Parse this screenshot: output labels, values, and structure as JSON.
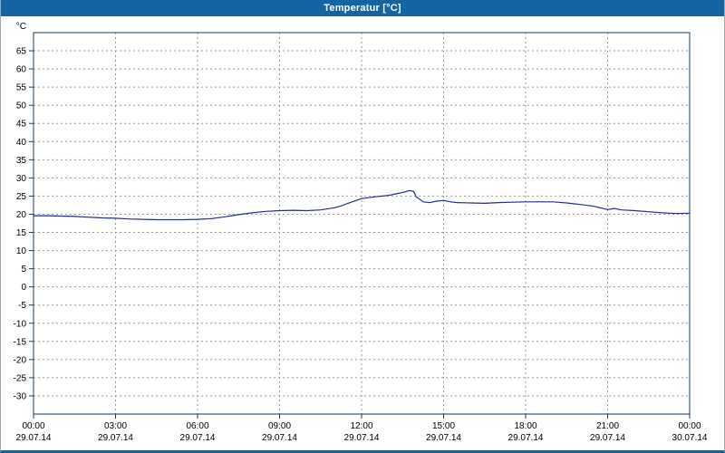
{
  "window": {
    "title": "Temperatur [°C]"
  },
  "colors": {
    "titlebar": "#1464a4",
    "plot_background": "#ffffff",
    "grid": "#9a9a9a",
    "axis_border": "#1b3a6b",
    "line": "#2129a3",
    "tick_text": "#000000"
  },
  "chart_data": {
    "type": "line",
    "title": "Temperatur [°C]",
    "unit_label": "°C",
    "grid": "dashed",
    "legend": "none",
    "xlim": [
      0,
      24
    ],
    "ylim": [
      -35,
      70
    ],
    "y_ticks": [
      65,
      60,
      55,
      50,
      45,
      40,
      35,
      30,
      25,
      20,
      15,
      10,
      5,
      0,
      -5,
      -10,
      -15,
      -20,
      -25,
      -30
    ],
    "x_ticks": [
      {
        "hour": 0,
        "time": "00:00",
        "date": "29.07.14"
      },
      {
        "hour": 3,
        "time": "03:00",
        "date": "29.07.14"
      },
      {
        "hour": 6,
        "time": "06:00",
        "date": "29.07.14"
      },
      {
        "hour": 9,
        "time": "09:00",
        "date": "29.07.14"
      },
      {
        "hour": 12,
        "time": "12:00",
        "date": "29.07.14"
      },
      {
        "hour": 15,
        "time": "15:00",
        "date": "29.07.14"
      },
      {
        "hour": 18,
        "time": "18:00",
        "date": "29.07.14"
      },
      {
        "hour": 21,
        "time": "21:00",
        "date": "29.07.14"
      },
      {
        "hour": 24,
        "time": "00:00",
        "date": "30.07.14"
      }
    ],
    "series": [
      {
        "name": "Temperatur",
        "x": [
          0,
          0.5,
          1,
          1.5,
          2,
          2.5,
          3,
          3.5,
          4,
          4.5,
          5,
          5.5,
          6,
          6.5,
          7,
          7.5,
          8,
          8.5,
          9,
          9.5,
          10,
          10.5,
          11,
          11.25,
          11.5,
          12,
          12.5,
          13,
          13.25,
          13.5,
          13.75,
          13.9,
          14,
          14.25,
          14.5,
          14.75,
          15,
          15.25,
          15.5,
          16,
          16.5,
          17,
          17.5,
          18,
          18.5,
          19,
          19.5,
          20,
          20.5,
          21,
          21.25,
          21.5,
          22,
          22.5,
          23,
          23.5,
          24
        ],
        "y": [
          19.6,
          19.6,
          19.5,
          19.4,
          19.2,
          19.0,
          18.9,
          18.7,
          18.6,
          18.5,
          18.5,
          18.5,
          18.6,
          18.8,
          19.3,
          19.9,
          20.4,
          20.8,
          21.0,
          21.1,
          21.0,
          21.2,
          21.8,
          22.3,
          23.0,
          24.3,
          24.8,
          25.2,
          25.6,
          26.0,
          26.5,
          26.3,
          24.8,
          23.4,
          23.2,
          23.6,
          23.8,
          23.4,
          23.2,
          23.1,
          23.0,
          23.2,
          23.3,
          23.4,
          23.4,
          23.4,
          23.1,
          22.7,
          22.2,
          21.3,
          21.6,
          21.2,
          21.0,
          20.7,
          20.4,
          20.2,
          20.3
        ]
      }
    ]
  }
}
